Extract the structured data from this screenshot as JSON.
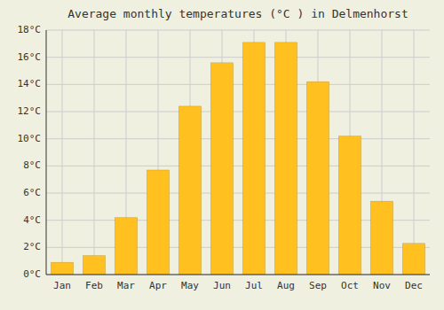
{
  "chart_data": {
    "type": "bar",
    "title": "Average monthly temperatures (°C ) in Delmenhorst",
    "categories": [
      "Jan",
      "Feb",
      "Mar",
      "Apr",
      "May",
      "Jun",
      "Jul",
      "Aug",
      "Sep",
      "Oct",
      "Nov",
      "Dec"
    ],
    "values": [
      0.9,
      1.4,
      4.2,
      7.7,
      12.4,
      15.6,
      17.1,
      17.1,
      14.2,
      10.2,
      5.4,
      2.3
    ],
    "color": "#FFC020",
    "ylim": [
      0,
      18
    ],
    "yticks": [
      {
        "value": 0,
        "label": "0°C"
      },
      {
        "value": 2,
        "label": "2°C"
      },
      {
        "value": 4,
        "label": "4°C"
      },
      {
        "value": 6,
        "label": "6°C"
      },
      {
        "value": 8,
        "label": "8°C"
      },
      {
        "value": 10,
        "label": "10°C"
      },
      {
        "value": 12,
        "label": "12°C"
      },
      {
        "value": 14,
        "label": "14°C"
      },
      {
        "value": 16,
        "label": "16°C"
      },
      {
        "value": 18,
        "label": "18°C"
      }
    ],
    "grid": true
  }
}
